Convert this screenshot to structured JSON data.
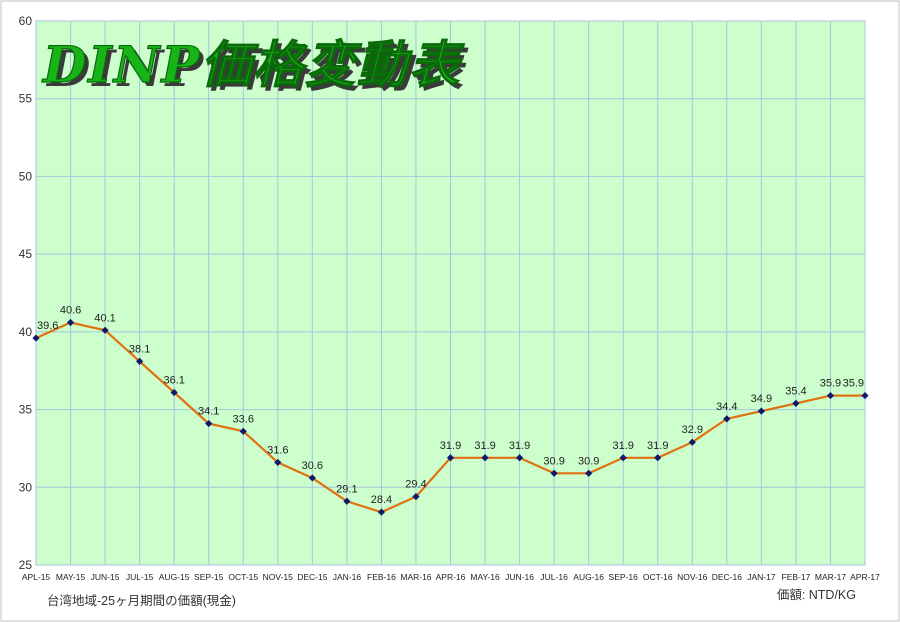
{
  "chart_data": {
    "type": "line",
    "title": "DINP価格変動表",
    "categories": [
      "APL-15",
      "MAY-15",
      "JUN-15",
      "JUL-15",
      "AUG-15",
      "SEP-15",
      "OCT-15",
      "NOV-15",
      "DEC-15",
      "JAN-16",
      "FEB-16",
      "MAR-16",
      "APR-16",
      "MAY-16",
      "JUN-16",
      "JUL-16",
      "AUG-16",
      "SEP-16",
      "OCT-16",
      "NOV-16",
      "DEC-16",
      "JAN-17",
      "FEB-17",
      "MAR-17",
      "APR-17"
    ],
    "values": [
      39.6,
      40.6,
      40.1,
      38.1,
      36.1,
      34.1,
      33.6,
      31.6,
      30.6,
      29.1,
      28.4,
      29.4,
      31.9,
      31.9,
      31.9,
      30.9,
      30.9,
      31.9,
      31.9,
      32.9,
      34.4,
      34.9,
      35.4,
      35.9,
      35.9
    ],
    "ylim": [
      25,
      60
    ],
    "yticks": [
      25,
      30,
      35,
      40,
      45,
      50,
      55,
      60
    ],
    "grid": true,
    "line_color": "#e07010",
    "marker_color": "#0d1a6e",
    "plot_bg": "#ccffcc",
    "grid_color": "#a8c4e0",
    "note_left": "台湾地域-25ヶ月期間の価額(現金)",
    "note_right": "価額: NTD/KG"
  }
}
